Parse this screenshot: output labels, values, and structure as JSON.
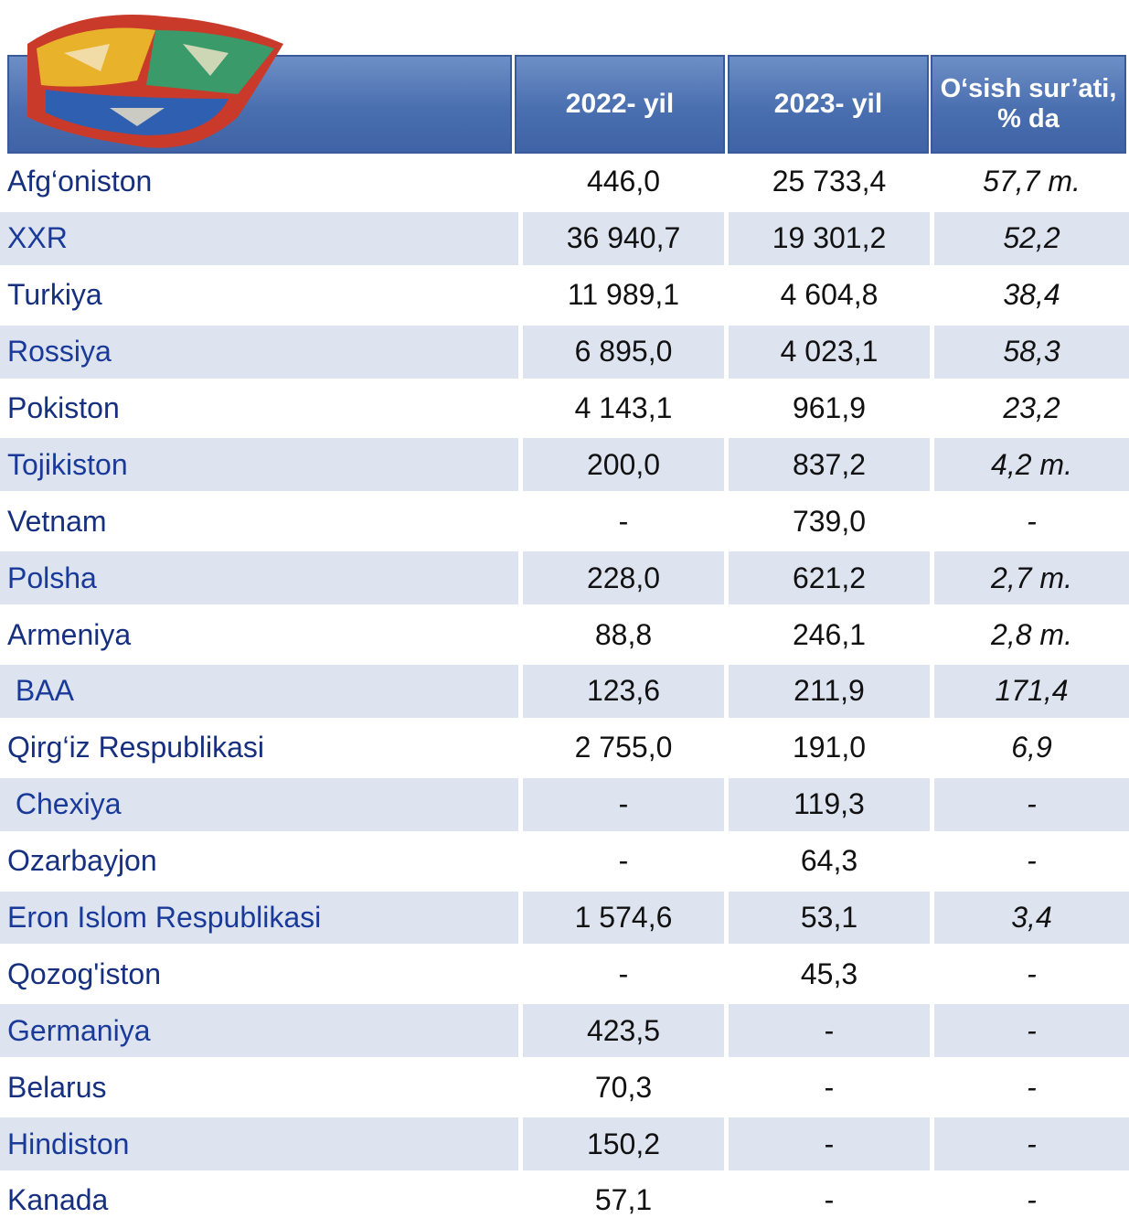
{
  "table": {
    "header": [
      "2022- yil",
      "2023- yil",
      "O‘sish sur’ati, % da"
    ],
    "rows": [
      [
        "Afg‘oniston",
        "446,0",
        "25 733,4",
        "57,7 m."
      ],
      [
        "XXR",
        "36 940,7",
        "19 301,2",
        "52,2"
      ],
      [
        "Turkiya",
        "11 989,1",
        "4 604,8",
        "38,4"
      ],
      [
        "Rossiya",
        "6 895,0",
        "4 023,1",
        "58,3"
      ],
      [
        "Pokiston",
        "4 143,1",
        "961,9",
        "23,2"
      ],
      [
        "Tojikiston",
        "200,0",
        "837,2",
        "4,2 m."
      ],
      [
        "Vetnam",
        "-",
        "739,0",
        "-"
      ],
      [
        "Polsha",
        "228,0",
        "621,2",
        "2,7 m."
      ],
      [
        "Armeniya",
        "88,8",
        "246,1",
        "2,8 m."
      ],
      [
        " BAA",
        "123,6",
        "211,9",
        "171,4"
      ],
      [
        "Qirg‘iz Respublikasi",
        "2 755,0",
        "191,0",
        "6,9"
      ],
      [
        " Chexiya",
        "-",
        "119,3",
        "-"
      ],
      [
        "Ozarbayjon",
        "-",
        "64,3",
        "-"
      ],
      [
        "Eron Islom Respublikasi",
        "1 574,6",
        "53,1",
        "3,4"
      ],
      [
        "Qozog'iston",
        "-",
        "45,3",
        "-"
      ],
      [
        "Germaniya",
        "423,5",
        "-",
        "-"
      ],
      [
        "Belarus",
        "70,3",
        "-",
        "-"
      ],
      [
        "Hindiston",
        "150,2",
        "-",
        "-"
      ],
      [
        "Kanada",
        "57,1",
        "-",
        "-"
      ]
    ]
  }
}
